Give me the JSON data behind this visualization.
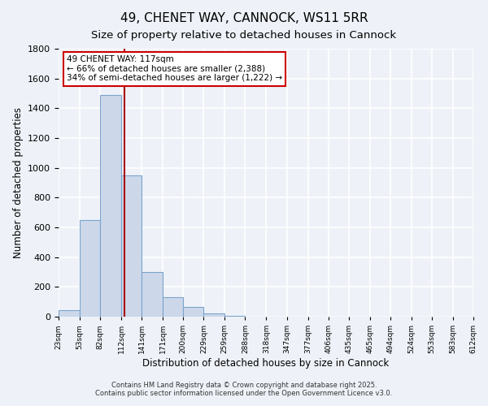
{
  "title": "49, CHENET WAY, CANNOCK, WS11 5RR",
  "subtitle": "Size of property relative to detached houses in Cannock",
  "xlabel": "Distribution of detached houses by size in Cannock",
  "ylabel": "Number of detached properties",
  "bin_edges": [
    23,
    53,
    82,
    112,
    141,
    171,
    200,
    229,
    259,
    288,
    318,
    347,
    377,
    406,
    435,
    465,
    494,
    524,
    553,
    583,
    612
  ],
  "counts": [
    45,
    650,
    1490,
    950,
    300,
    130,
    65,
    20,
    5,
    2,
    1,
    0,
    0,
    0,
    0,
    0,
    0,
    0,
    0,
    0
  ],
  "bar_color": "#ccd8ea",
  "bar_edge_color": "#7ba3cc",
  "vertical_line_x": 117,
  "vertical_line_color": "#aa0000",
  "annotation_line1": "49 CHENET WAY: 117sqm",
  "annotation_line2": "← 66% of detached houses are smaller (2,388)",
  "annotation_line3": "34% of semi-detached houses are larger (1,222) →",
  "annotation_box_color": "white",
  "annotation_box_edge_color": "#cc0000",
  "ylim": [
    0,
    1800
  ],
  "title_fontsize": 11,
  "subtitle_fontsize": 9.5,
  "tick_labels": [
    "23sqm",
    "53sqm",
    "82sqm",
    "112sqm",
    "141sqm",
    "171sqm",
    "200sqm",
    "229sqm",
    "259sqm",
    "288sqm",
    "318sqm",
    "347sqm",
    "377sqm",
    "406sqm",
    "435sqm",
    "465sqm",
    "494sqm",
    "524sqm",
    "553sqm",
    "583sqm",
    "612sqm"
  ],
  "background_color": "#eef2f8",
  "grid_color": "white",
  "footer_line1": "Contains HM Land Registry data © Crown copyright and database right 2025.",
  "footer_line2": "Contains public sector information licensed under the Open Government Licence v3.0."
}
